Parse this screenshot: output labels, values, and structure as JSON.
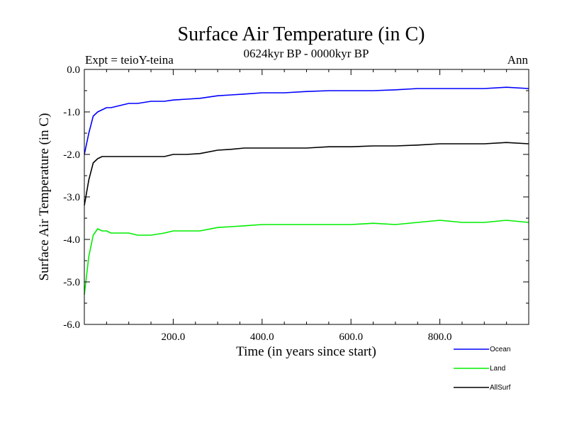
{
  "chart_data": {
    "type": "line",
    "title": "Surface Air Temperature (in C)",
    "subtitle": "0624kyr BP - 0000kyr BP",
    "expt_label": "Expt = teioY-teina",
    "period_label": "Ann",
    "xlabel": "Time (in years since start)",
    "ylabel": "Surface Air Temperature (in C)",
    "xlim": [
      0,
      1000
    ],
    "ylim": [
      -6.0,
      0.0
    ],
    "x_ticks": [
      200,
      400,
      600,
      800
    ],
    "x_tick_labels": [
      "200.0",
      "400.0",
      "600.0",
      "800.0"
    ],
    "y_ticks": [
      0,
      -1,
      -2,
      -3,
      -4,
      -5,
      -6
    ],
    "y_tick_labels": [
      "0.0",
      "-1.0",
      "-2.0",
      "-3.0",
      "-4.0",
      "-5.0",
      "-6.0"
    ],
    "grid": false,
    "legend_position": "bottom-right",
    "series": [
      {
        "name": "Ocean",
        "color": "#0000ff",
        "x": [
          0,
          10,
          20,
          30,
          40,
          50,
          60,
          80,
          100,
          120,
          150,
          180,
          200,
          230,
          260,
          300,
          330,
          360,
          400,
          450,
          500,
          550,
          600,
          650,
          700,
          750,
          800,
          850,
          900,
          950,
          1000
        ],
        "values": [
          -2.0,
          -1.5,
          -1.1,
          -1.0,
          -0.95,
          -0.9,
          -0.9,
          -0.85,
          -0.8,
          -0.8,
          -0.75,
          -0.75,
          -0.72,
          -0.7,
          -0.68,
          -0.62,
          -0.6,
          -0.58,
          -0.55,
          -0.55,
          -0.52,
          -0.5,
          -0.5,
          -0.5,
          -0.48,
          -0.45,
          -0.45,
          -0.45,
          -0.45,
          -0.42,
          -0.45
        ]
      },
      {
        "name": "Land",
        "color": "#00ee00",
        "x": [
          0,
          10,
          20,
          30,
          40,
          50,
          60,
          80,
          100,
          120,
          150,
          180,
          200,
          230,
          260,
          300,
          330,
          360,
          400,
          450,
          500,
          550,
          600,
          650,
          700,
          750,
          800,
          850,
          900,
          950,
          1000
        ],
        "values": [
          -5.3,
          -4.4,
          -3.9,
          -3.75,
          -3.8,
          -3.8,
          -3.85,
          -3.85,
          -3.85,
          -3.9,
          -3.9,
          -3.85,
          -3.8,
          -3.8,
          -3.8,
          -3.72,
          -3.7,
          -3.68,
          -3.65,
          -3.65,
          -3.65,
          -3.65,
          -3.65,
          -3.62,
          -3.65,
          -3.6,
          -3.55,
          -3.6,
          -3.6,
          -3.55,
          -3.6
        ]
      },
      {
        "name": "AllSurf",
        "color": "#000000",
        "x": [
          0,
          10,
          20,
          30,
          40,
          50,
          60,
          80,
          100,
          120,
          150,
          180,
          200,
          230,
          260,
          300,
          330,
          360,
          400,
          450,
          500,
          550,
          600,
          650,
          700,
          750,
          800,
          850,
          900,
          950,
          1000
        ],
        "values": [
          -3.2,
          -2.6,
          -2.2,
          -2.1,
          -2.05,
          -2.05,
          -2.05,
          -2.05,
          -2.05,
          -2.05,
          -2.05,
          -2.05,
          -2.0,
          -2.0,
          -1.98,
          -1.9,
          -1.88,
          -1.85,
          -1.85,
          -1.85,
          -1.85,
          -1.82,
          -1.82,
          -1.8,
          -1.8,
          -1.78,
          -1.75,
          -1.75,
          -1.75,
          -1.72,
          -1.75
        ]
      }
    ]
  }
}
